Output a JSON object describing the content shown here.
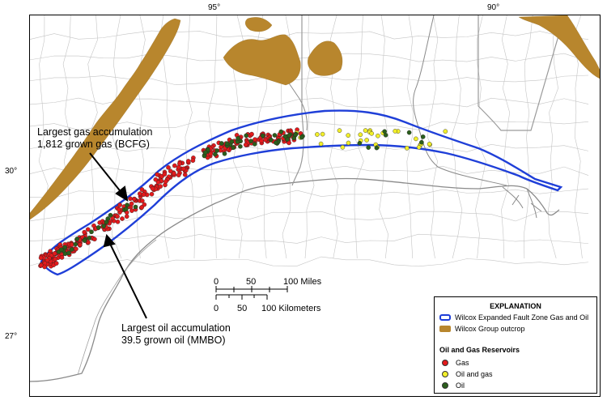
{
  "graticule": {
    "longitudes": [
      {
        "label": "95°"
      },
      {
        "label": "90°"
      }
    ],
    "latitudes": [
      {
        "label": "30°"
      },
      {
        "label": "27°"
      }
    ]
  },
  "annotations": {
    "gas": {
      "line1": "Largest gas accumulation",
      "line2": "1,812 grown gas (BCFG)"
    },
    "oil": {
      "line1": "Largest oil accumulation",
      "line2": "39.5 grown oil (MMBO)"
    }
  },
  "scale_bar": {
    "miles": {
      "ticks": [
        "0",
        "50",
        "100 Miles"
      ]
    },
    "kilometers": {
      "ticks": [
        "0",
        "50",
        "100 Kilometers"
      ]
    }
  },
  "legend": {
    "title": "EXPLANATION",
    "items": [
      {
        "label": "Wilcox Expanded Fault Zone Gas and Oil",
        "kind": "outline",
        "color": "#1f3fd8"
      },
      {
        "label": "Wilcox Group outcrop",
        "kind": "fill",
        "color": "#b8862d"
      }
    ],
    "reservoirs_heading": "Oil and Gas Reservoirs",
    "reservoirs": [
      {
        "label": "Gas",
        "color": "#e31a1c"
      },
      {
        "label": "Oil and gas",
        "color": "#f2ef2a"
      },
      {
        "label": "Oil",
        "color": "#2b5e1c"
      }
    ]
  },
  "colors": {
    "land": "#ffffff",
    "water_line": "#8a8a8a",
    "county_line": "#bdbdbd",
    "zone_outline": "#1f3fd8",
    "outcrop": "#b8862d"
  }
}
